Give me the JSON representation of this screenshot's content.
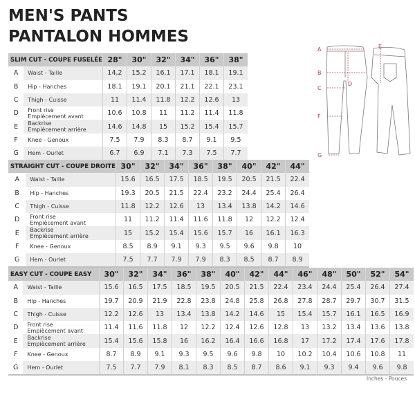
{
  "title_line1": "MEN'S PANTS",
  "title_line2": "PANTALON HOMMES",
  "measurements": [
    {
      "letter": "A",
      "label": "Waist - Taille"
    },
    {
      "letter": "B",
      "label": "Hip - Hanches"
    },
    {
      "letter": "C",
      "label": "Thigh - Cuisse"
    },
    {
      "letter": "D",
      "label": "Front rise\nEmpiècement avant"
    },
    {
      "letter": "E",
      "label": "Backrise\nEmpiècement arrière"
    },
    {
      "letter": "F",
      "label": "Knee - Genoux"
    },
    {
      "letter": "G",
      "label": "Hem - Ourlet"
    }
  ],
  "tables": [
    {
      "cut": "SLIM CUT - COUPE FUSELÉE",
      "sizes": [
        "28\"",
        "30\"",
        "32\"",
        "34\"",
        "36\"",
        "38\""
      ],
      "rows": [
        [
          "14,2",
          "15.2",
          "16.1",
          "17.1",
          "18.1",
          "19.1"
        ],
        [
          "18.1",
          "19.1",
          "20.1",
          "21.1",
          "22.1",
          "23.1"
        ],
        [
          "11",
          "11.4",
          "11.8",
          "12.2",
          "12.6",
          "13"
        ],
        [
          "10.6",
          "10.8",
          "11",
          "11.2",
          "11.4",
          "11.8"
        ],
        [
          "14.6",
          "14.8",
          "15",
          "15.2",
          "15.4",
          "15.7"
        ],
        [
          "7.5",
          "7.9",
          "8.3",
          "8.7",
          "9.1",
          "9.5"
        ],
        [
          "6.7",
          "6.9",
          "7.1",
          "7.3",
          "7.5",
          "7.7"
        ]
      ]
    },
    {
      "cut": "STRAIGHT CUT - COUPE DROITE",
      "sizes": [
        "30\"",
        "32\"",
        "34\"",
        "36\"",
        "38\"",
        "40\"",
        "42\"",
        "44\""
      ],
      "rows": [
        [
          "15.6",
          "16.5",
          "17.5",
          "18.5",
          "19.5",
          "20.5",
          "21.5",
          "22.4"
        ],
        [
          "19.3",
          "20.5",
          "21.5",
          "22.4",
          "23.2",
          "24.4",
          "25.4",
          "26.4"
        ],
        [
          "11.8",
          "12.2",
          "12.6",
          "13",
          "13.4",
          "13.8",
          "14.2",
          "14.6"
        ],
        [
          "11",
          "11.2",
          "11.4",
          "11.6",
          "11.8",
          "12",
          "12.2",
          "12.4"
        ],
        [
          "15",
          "15.2",
          "15.4",
          "15.6",
          "15.7",
          "16",
          "16.1",
          "16.3"
        ],
        [
          "8.5",
          "8.9",
          "9.1",
          "9.3",
          "9.5",
          "9.6",
          "9.8",
          "10"
        ],
        [
          "7.5",
          "7.7",
          "7.9",
          "7.9",
          "8.3",
          "8.5",
          "8.7",
          "8.9"
        ]
      ]
    },
    {
      "cut": "EASY CUT - COUPE EASY",
      "sizes": [
        "30\"",
        "32\"",
        "34\"",
        "36\"",
        "38\"",
        "40\"",
        "42\"",
        "44\"",
        "46\"",
        "48\"",
        "50\"",
        "52\"",
        "54\""
      ],
      "rows": [
        [
          "15.6",
          "16.5",
          "17.5",
          "18.5",
          "19.5",
          "20.5",
          "21.5",
          "22.4",
          "23.4",
          "24.4",
          "25.4",
          "26.4",
          "27.4"
        ],
        [
          "19.7",
          "20.9",
          "21.9",
          "22.8",
          "23.8",
          "24.8",
          "25.8",
          "26.8",
          "27.8",
          "28.7",
          "29.7",
          "30.7",
          "31.5"
        ],
        [
          "12.2",
          "12.6",
          "13",
          "13.4",
          "13.8",
          "14.2",
          "14.6",
          "15",
          "15.4",
          "15.7",
          "16.1",
          "16.5",
          "16.9"
        ],
        [
          "11.4",
          "11.6",
          "11.8",
          "12",
          "12.2",
          "12.4",
          "12.6",
          "12.8",
          "13",
          "13.2",
          "13.4",
          "13.6",
          "13.8"
        ],
        [
          "15.4",
          "15.6",
          "15.8",
          "16",
          "16.2",
          "16.4",
          "16.6",
          "16.8",
          "17",
          "17.2",
          "17.4",
          "17.6",
          "17.8"
        ],
        [
          "8.7",
          "8.9",
          "9.1",
          "9.3",
          "9.5",
          "9.6",
          "9.8",
          "10",
          "10.2",
          "10.4",
          "10.6",
          "10.8",
          "11"
        ],
        [
          "7.5",
          "7.7",
          "7.9",
          "8.1",
          "8.3",
          "8.5",
          "8.7",
          "8.6",
          "9.1",
          "9.3",
          "9.4",
          "9.6",
          "9.8"
        ]
      ]
    }
  ],
  "units": "Inches - Pouces",
  "diagram_labels": [
    "A",
    "B",
    "C",
    "D",
    "E",
    "F",
    "G"
  ],
  "colors": {
    "accent": "#d2394a",
    "header_bg": "#c9c9c9",
    "alt_row": "#ececec"
  }
}
